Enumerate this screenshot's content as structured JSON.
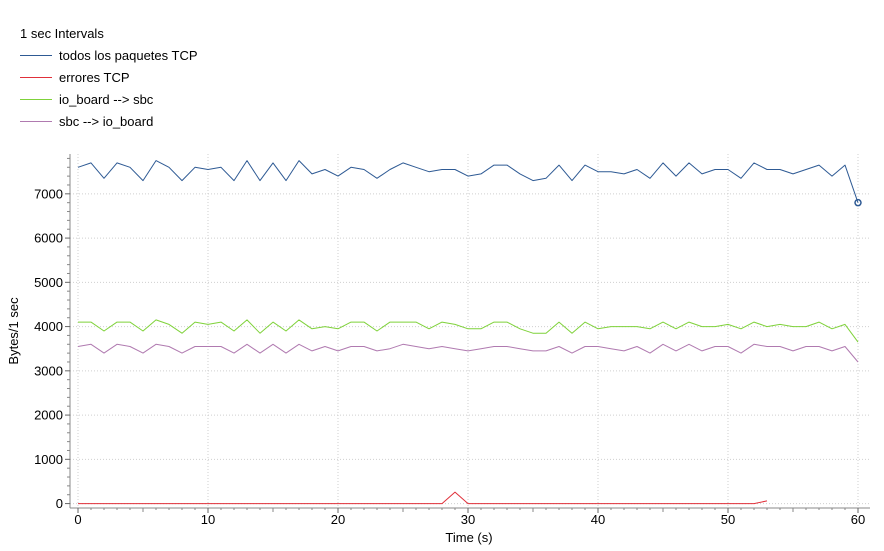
{
  "chart_data": {
    "type": "line",
    "title": "1 sec Intervals",
    "xlabel": "Time (s)",
    "ylabel": "Bytes/1 sec",
    "xlim": [
      0,
      60
    ],
    "ylim": [
      -100,
      7900
    ],
    "x_ticks": [
      0,
      10,
      20,
      30,
      40,
      50,
      60
    ],
    "y_ticks": [
      0,
      1000,
      2000,
      3000,
      4000,
      5000,
      6000,
      7000
    ],
    "grid": true,
    "legend_position": "top-left",
    "series": [
      {
        "name": "todos los paquetes TCP",
        "color": "#2e5a94",
        "x": [
          0,
          1,
          2,
          3,
          4,
          5,
          6,
          7,
          8,
          9,
          10,
          11,
          12,
          13,
          14,
          15,
          16,
          17,
          18,
          19,
          20,
          21,
          22,
          23,
          24,
          25,
          26,
          27,
          28,
          29,
          30,
          31,
          32,
          33,
          34,
          35,
          36,
          37,
          38,
          39,
          40,
          41,
          42,
          43,
          44,
          45,
          46,
          47,
          48,
          49,
          50,
          51,
          52,
          53,
          54,
          55,
          56,
          57,
          58,
          59,
          60
        ],
        "values": [
          7600,
          7700,
          7350,
          7700,
          7600,
          7300,
          7750,
          7600,
          7300,
          7600,
          7550,
          7600,
          7300,
          7750,
          7300,
          7700,
          7300,
          7750,
          7450,
          7550,
          7400,
          7600,
          7550,
          7350,
          7550,
          7700,
          7600,
          7500,
          7550,
          7550,
          7400,
          7450,
          7650,
          7650,
          7450,
          7300,
          7350,
          7650,
          7300,
          7650,
          7500,
          7500,
          7450,
          7550,
          7350,
          7700,
          7400,
          7700,
          7450,
          7550,
          7550,
          7350,
          7700,
          7550,
          7550,
          7450,
          7550,
          7650,
          7400,
          7650,
          6800
        ],
        "marker_last": true
      },
      {
        "name": "errores TCP",
        "color": "#e0303a",
        "x": [
          0,
          28,
          29,
          30,
          52,
          53
        ],
        "values": [
          0,
          0,
          260,
          0,
          0,
          60
        ]
      },
      {
        "name": "io_board --> sbc",
        "color": "#7fd23a",
        "x": [
          0,
          1,
          2,
          3,
          4,
          5,
          6,
          7,
          8,
          9,
          10,
          11,
          12,
          13,
          14,
          15,
          16,
          17,
          18,
          19,
          20,
          21,
          22,
          23,
          24,
          25,
          26,
          27,
          28,
          29,
          30,
          31,
          32,
          33,
          34,
          35,
          36,
          37,
          38,
          39,
          40,
          41,
          42,
          43,
          44,
          45,
          46,
          47,
          48,
          49,
          50,
          51,
          52,
          53,
          54,
          55,
          56,
          57,
          58,
          59,
          60
        ],
        "values": [
          4100,
          4100,
          3900,
          4100,
          4100,
          3900,
          4150,
          4050,
          3850,
          4100,
          4050,
          4100,
          3900,
          4150,
          3850,
          4100,
          3900,
          4150,
          3950,
          4000,
          3950,
          4100,
          4100,
          3900,
          4100,
          4100,
          4100,
          3950,
          4100,
          4050,
          3950,
          3950,
          4100,
          4100,
          3950,
          3850,
          3850,
          4100,
          3850,
          4100,
          3950,
          4000,
          4000,
          4000,
          3950,
          4100,
          3950,
          4100,
          4000,
          4000,
          4050,
          3950,
          4100,
          4000,
          4050,
          4000,
          4000,
          4100,
          3950,
          4050,
          3650
        ]
      },
      {
        "name": "sbc --> io_board",
        "color": "#b07ab0",
        "x": [
          0,
          1,
          2,
          3,
          4,
          5,
          6,
          7,
          8,
          9,
          10,
          11,
          12,
          13,
          14,
          15,
          16,
          17,
          18,
          19,
          20,
          21,
          22,
          23,
          24,
          25,
          26,
          27,
          28,
          29,
          30,
          31,
          32,
          33,
          34,
          35,
          36,
          37,
          38,
          39,
          40,
          41,
          42,
          43,
          44,
          45,
          46,
          47,
          48,
          49,
          50,
          51,
          52,
          53,
          54,
          55,
          56,
          57,
          58,
          59,
          60
        ],
        "values": [
          3550,
          3600,
          3400,
          3600,
          3550,
          3400,
          3600,
          3550,
          3400,
          3550,
          3550,
          3550,
          3400,
          3600,
          3400,
          3600,
          3400,
          3600,
          3450,
          3550,
          3450,
          3550,
          3550,
          3450,
          3500,
          3600,
          3550,
          3500,
          3550,
          3500,
          3450,
          3500,
          3550,
          3550,
          3500,
          3450,
          3450,
          3550,
          3400,
          3550,
          3550,
          3500,
          3450,
          3550,
          3400,
          3600,
          3450,
          3600,
          3450,
          3550,
          3550,
          3400,
          3600,
          3550,
          3550,
          3450,
          3550,
          3550,
          3450,
          3550,
          3200
        ]
      }
    ]
  }
}
